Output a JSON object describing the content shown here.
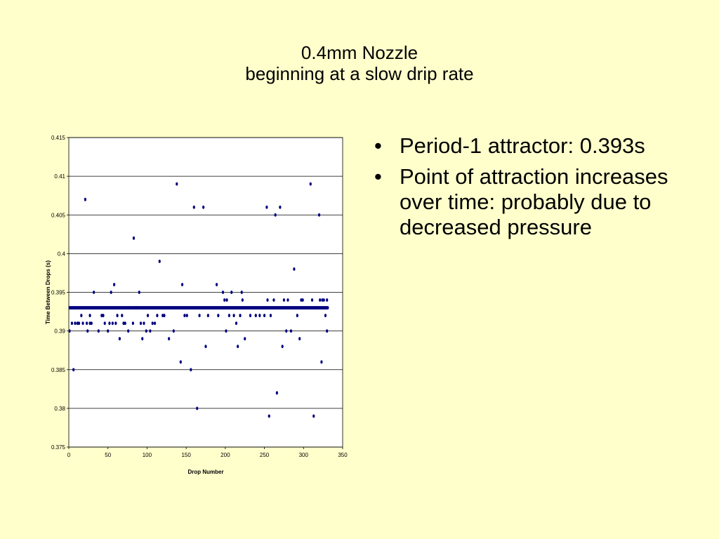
{
  "slide": {
    "title_line1": "0.4mm Nozzle",
    "title_line2": "beginning at a slow drip rate",
    "bullets": [
      "Period-1 attractor: 0.393s",
      "Point of attraction increases over time: probably due to decreased pressure"
    ]
  },
  "chart_data": {
    "type": "scatter",
    "xlabel": "Drop Number",
    "ylabel": "Time Between Drops (s)",
    "xlim": [
      0,
      350
    ],
    "ylim": [
      0.375,
      0.415
    ],
    "xticks": [
      "0",
      "50",
      "100",
      "150",
      "200",
      "250",
      "300",
      "350"
    ],
    "yticks": [
      "0.375",
      "0.38",
      "0.385",
      "0.39",
      "0.395",
      "0.4",
      "0.405",
      "0.41",
      "0.415"
    ],
    "grid": "horizontal",
    "marker_color": "#000080",
    "baseline_value": 0.393,
    "baseline_range": [
      1,
      331
    ],
    "points": [
      [
        1,
        0.39
      ],
      [
        4,
        0.391
      ],
      [
        6,
        0.385
      ],
      [
        8,
        0.391
      ],
      [
        11,
        0.391
      ],
      [
        13,
        0.391
      ],
      [
        16,
        0.392
      ],
      [
        18,
        0.391
      ],
      [
        21,
        0.407
      ],
      [
        23,
        0.391
      ],
      [
        24,
        0.39
      ],
      [
        27,
        0.391
      ],
      [
        27,
        0.392
      ],
      [
        29,
        0.391
      ],
      [
        32,
        0.395
      ],
      [
        38,
        0.39
      ],
      [
        42,
        0.392
      ],
      [
        44,
        0.392
      ],
      [
        46,
        0.391
      ],
      [
        50,
        0.39
      ],
      [
        52,
        0.391
      ],
      [
        54,
        0.395
      ],
      [
        56,
        0.391
      ],
      [
        58,
        0.396
      ],
      [
        60,
        0.391
      ],
      [
        62,
        0.392
      ],
      [
        65,
        0.389
      ],
      [
        68,
        0.392
      ],
      [
        70,
        0.391
      ],
      [
        72,
        0.391
      ],
      [
        76,
        0.39
      ],
      [
        82,
        0.391
      ],
      [
        83,
        0.402
      ],
      [
        86,
        0.393
      ],
      [
        90,
        0.395
      ],
      [
        92,
        0.391
      ],
      [
        94,
        0.389
      ],
      [
        96,
        0.391
      ],
      [
        99,
        0.39
      ],
      [
        101,
        0.392
      ],
      [
        104,
        0.39
      ],
      [
        107,
        0.391
      ],
      [
        110,
        0.391
      ],
      [
        113,
        0.392
      ],
      [
        116,
        0.399
      ],
      [
        120,
        0.392
      ],
      [
        122,
        0.392
      ],
      [
        128,
        0.389
      ],
      [
        134,
        0.39
      ],
      [
        138,
        0.409
      ],
      [
        143,
        0.386
      ],
      [
        145,
        0.396
      ],
      [
        148,
        0.392
      ],
      [
        151,
        0.392
      ],
      [
        156,
        0.385
      ],
      [
        160,
        0.406
      ],
      [
        164,
        0.38
      ],
      [
        167,
        0.392
      ],
      [
        172,
        0.406
      ],
      [
        175,
        0.388
      ],
      [
        178,
        0.392
      ],
      [
        189,
        0.396
      ],
      [
        191,
        0.392
      ],
      [
        197,
        0.395
      ],
      [
        199,
        0.394
      ],
      [
        201,
        0.39
      ],
      [
        202,
        0.394
      ],
      [
        205,
        0.392
      ],
      [
        208,
        0.395
      ],
      [
        211,
        0.392
      ],
      [
        214,
        0.391
      ],
      [
        216,
        0.388
      ],
      [
        219,
        0.392
      ],
      [
        221,
        0.395
      ],
      [
        222,
        0.394
      ],
      [
        225,
        0.389
      ],
      [
        232,
        0.392
      ],
      [
        239,
        0.392
      ],
      [
        244,
        0.392
      ],
      [
        250,
        0.392
      ],
      [
        253,
        0.406
      ],
      [
        254,
        0.394
      ],
      [
        256,
        0.379
      ],
      [
        258,
        0.392
      ],
      [
        262,
        0.394
      ],
      [
        264,
        0.405
      ],
      [
        266,
        0.382
      ],
      [
        270,
        0.406
      ],
      [
        273,
        0.388
      ],
      [
        275,
        0.394
      ],
      [
        278,
        0.39
      ],
      [
        280,
        0.394
      ],
      [
        284,
        0.39
      ],
      [
        288,
        0.398
      ],
      [
        292,
        0.392
      ],
      [
        295,
        0.389
      ],
      [
        297,
        0.394
      ],
      [
        299,
        0.394
      ],
      [
        309,
        0.409
      ],
      [
        311,
        0.394
      ],
      [
        313,
        0.379
      ],
      [
        316,
        0.393
      ],
      [
        320,
        0.405
      ],
      [
        321,
        0.394
      ],
      [
        323,
        0.386
      ],
      [
        324,
        0.394
      ],
      [
        326,
        0.394
      ],
      [
        328,
        0.392
      ],
      [
        330,
        0.39
      ],
      [
        330,
        0.394
      ]
    ]
  }
}
